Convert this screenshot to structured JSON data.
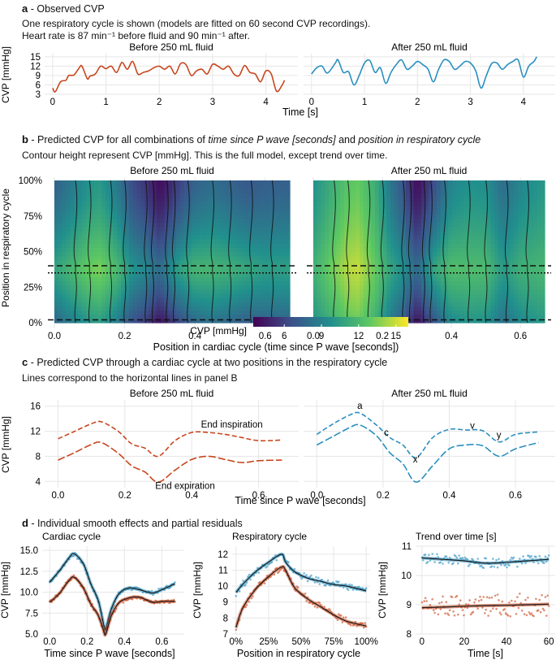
{
  "colors": {
    "before": "#c8461d",
    "after": "#2a8fc0",
    "dark": "#1b1b1b",
    "grid": "#e6e6e6"
  },
  "panel_a": {
    "letter": "a",
    "title": " - Observed CVP",
    "line1": "One respiratory cycle is shown (models are fitted on 60 second CVP recordings).",
    "line2": "Heart rate is 87 min⁻¹ before fluid and 90 min⁻¹ after."
  },
  "panel_b": {
    "letter": "b",
    "title_pre": " - Predicted CVP for all combinations of ",
    "title_it1": "time since P wave [seconds]",
    "title_mid": " and ",
    "title_it2": "position in respiratory cycle",
    "subtitle": "Contour height represent CVP [mmHg]. This is the full model, except trend over time.",
    "colorbar_label": "CVP [mmHg]",
    "colorbar_ticks": [
      "6",
      "9",
      "12",
      "15"
    ]
  },
  "panel_c": {
    "letter": "c",
    "title": " - Predicted CVP through a cardiac cycle at two positions in the respiratory cycle",
    "subtitle": "Lines correspond to the horizontal lines in panel B",
    "label_insp": "End inspiration",
    "label_exp": "End expiration",
    "wave_labels": [
      "a",
      "c",
      "x'",
      "v",
      "y"
    ]
  },
  "panel_d": {
    "letter": "d",
    "title": " - Individual smooth effects and partial residuals"
  },
  "chart_data": [
    {
      "id": "a",
      "type": "line",
      "facets": [
        "Before 250 mL fluid",
        "After 250 mL fluid"
      ],
      "xlabel": "Time [s]",
      "ylabel": "CVP [mmHg]",
      "ylim": [
        3,
        16
      ],
      "yticks": [
        "15",
        "12",
        "9",
        "6",
        "3"
      ],
      "xticks": [
        "0",
        "1",
        "2",
        "3",
        "4"
      ],
      "series": [
        {
          "name": "Before 250 mL fluid",
          "x": [
            0,
            0.05,
            0.15,
            0.25,
            0.3,
            0.4,
            0.5,
            0.55,
            0.65,
            0.7,
            0.8,
            0.9,
            1.0,
            1.1,
            1.2,
            1.3,
            1.4,
            1.5,
            1.6,
            1.7,
            1.8,
            1.9,
            2.0,
            2.1,
            2.2,
            2.3,
            2.4,
            2.5,
            2.6,
            2.7,
            2.8,
            2.9,
            3.0,
            3.1,
            3.2,
            3.3,
            3.4,
            3.5,
            3.6,
            3.7,
            3.8,
            3.9,
            4.0,
            4.1,
            4.2,
            4.3,
            4.35
          ],
          "y": [
            5,
            3.8,
            7,
            7.5,
            9,
            9.2,
            11.5,
            12,
            8,
            8.8,
            9.5,
            12,
            11.2,
            12,
            10,
            13.2,
            11,
            13.5,
            9.5,
            10,
            10.5,
            11.5,
            12,
            11,
            12,
            9.5,
            12.8,
            12.5,
            9,
            10.5,
            11,
            9.5,
            12.6,
            12,
            11,
            12,
            9.5,
            9,
            12.2,
            10,
            9.5,
            7,
            10.5,
            9.5,
            4,
            5.8,
            7.5
          ]
        },
        {
          "name": "After 250 mL fluid",
          "x": [
            0,
            0.1,
            0.2,
            0.3,
            0.45,
            0.5,
            0.6,
            0.7,
            0.8,
            0.9,
            1.0,
            1.1,
            1.2,
            1.3,
            1.4,
            1.5,
            1.6,
            1.7,
            1.8,
            1.9,
            2.0,
            2.1,
            2.2,
            2.3,
            2.4,
            2.5,
            2.6,
            2.7,
            2.8,
            2.9,
            3.0,
            3.1,
            3.2,
            3.3,
            3.4,
            3.5,
            3.6,
            3.7,
            3.8,
            3.9,
            4.0,
            4.1,
            4.2,
            4.25
          ],
          "y": [
            9.5,
            11.5,
            12,
            9.8,
            13,
            14,
            10,
            10.2,
            6,
            9,
            13,
            13.8,
            10,
            11.5,
            6.5,
            10,
            12.5,
            14,
            11,
            12,
            13.5,
            12.5,
            11,
            7,
            11,
            14,
            13.5,
            11,
            12,
            13.5,
            13,
            10.5,
            5,
            9,
            12.8,
            13,
            11,
            12.5,
            13.5,
            14,
            8.5,
            12,
            13.5,
            15
          ]
        }
      ]
    },
    {
      "id": "b",
      "type": "heatmap",
      "facets": [
        "Before 250 mL fluid",
        "After 250 mL fluid"
      ],
      "xlabel": "Position in cardiac cycle (time since P wave [seconds])",
      "ylabel": "Position in respiratory cycle",
      "x_range": [
        0,
        0.67
      ],
      "y_range": [
        0,
        1
      ],
      "xticks": [
        "0.0",
        "0.2",
        "0.4",
        "0.6"
      ],
      "yticks": [
        "100%",
        "75%",
        "50%",
        "25%",
        "0%"
      ],
      "horizontal_lines": [
        {
          "y": 0.35,
          "style": "dotted"
        },
        {
          "y": 0.4,
          "style": "dashed"
        },
        {
          "y": 0.02,
          "style": "dashed"
        }
      ],
      "color_scale": {
        "min": 3.5,
        "max": 16,
        "colors": [
          "#440154",
          "#3b528b",
          "#21908d",
          "#5dc863",
          "#fde725"
        ]
      }
    },
    {
      "id": "c",
      "type": "line",
      "facets": [
        "Before 250 mL fluid",
        "After 250 mL fluid"
      ],
      "xlabel": "Time since P wave [seconds]",
      "ylabel": "CVP [mmHg]",
      "ylim": [
        3,
        17
      ],
      "yticks": [
        "16",
        "12",
        "8",
        "4"
      ],
      "xticks": [
        "0.0",
        "0.2",
        "0.4",
        "0.6"
      ],
      "x": [
        0,
        0.05,
        0.1,
        0.13,
        0.18,
        0.22,
        0.26,
        0.3,
        0.35,
        0.4,
        0.45,
        0.5,
        0.55,
        0.6,
        0.67
      ],
      "series": [
        {
          "name": "Before End inspiration",
          "values": [
            10.8,
            12,
            13.2,
            13.5,
            12,
            10,
            9.3,
            8,
            10.5,
            11.8,
            11.8,
            11.5,
            11,
            10.5,
            10.6
          ]
        },
        {
          "name": "Before End expiration",
          "values": [
            7.4,
            8.6,
            9.9,
            10.2,
            8.5,
            6.5,
            5.5,
            3.9,
            5.8,
            7.5,
            8,
            7.5,
            7,
            7.3,
            7.4
          ]
        },
        {
          "name": "After End inspiration",
          "values": [
            11.5,
            13.2,
            14.6,
            14.9,
            13,
            11,
            9.8,
            7.8,
            11,
            12.3,
            12.2,
            12.1,
            10.3,
            11.5,
            11.9
          ]
        },
        {
          "name": "After End expiration",
          "values": [
            9.8,
            11.2,
            12.6,
            13,
            11.3,
            8.6,
            6.8,
            3.9,
            6.5,
            9.2,
            9.8,
            9.7,
            8,
            9.2,
            10.2
          ]
        }
      ]
    },
    {
      "id": "d1",
      "type": "line",
      "title": "Cardiac cycle",
      "xlabel": "Time since P wave [seconds]",
      "ylabel": "CVP [mmHg]",
      "ylim": [
        5,
        15.5
      ],
      "yticks": [
        "15.0",
        "12.5",
        "10.0",
        "7.5",
        "5.0"
      ],
      "xticks": [
        "0.0",
        "0.2",
        "0.4",
        "0.6"
      ],
      "x": [
        0,
        0.05,
        0.1,
        0.13,
        0.18,
        0.22,
        0.26,
        0.29,
        0.3,
        0.33,
        0.37,
        0.42,
        0.48,
        0.55,
        0.6,
        0.67
      ],
      "series": [
        {
          "name": "After 250 mL fluid",
          "values": [
            11.2,
            12.5,
            14,
            14.6,
            13.4,
            11,
            9,
            6,
            5.6,
            8,
            9.8,
            10.5,
            10.3,
            9.9,
            10.3,
            11
          ]
        },
        {
          "name": "Before 250 mL fluid",
          "values": [
            8.8,
            9.8,
            11.3,
            11.8,
            10.5,
            8.6,
            7.2,
            5.3,
            5.0,
            7.2,
            8.7,
            9.3,
            9.4,
            8.8,
            8.9,
            8.9
          ]
        }
      ]
    },
    {
      "id": "d2",
      "type": "line",
      "title": "Respiratory cycle",
      "xlabel": "Position in respiratory cycle",
      "ylabel": "CVP [mmHg]",
      "ylim": [
        7,
        12.5
      ],
      "yticks": [
        "12",
        "11",
        "10",
        "9",
        "8",
        "7"
      ],
      "xticks": [
        "0%",
        "25%",
        "50%",
        "75%",
        "100%"
      ],
      "x": [
        0,
        0.05,
        0.15,
        0.25,
        0.35,
        0.38,
        0.45,
        0.55,
        0.65,
        0.75,
        0.85,
        1.0
      ],
      "series": [
        {
          "name": "After 250 mL fluid",
          "values": [
            9.6,
            10.1,
            10.9,
            11.5,
            12,
            11.5,
            10.9,
            10.5,
            10.3,
            10.1,
            10,
            9.7
          ]
        },
        {
          "name": "Before 250 mL fluid",
          "values": [
            7.4,
            8.6,
            9.8,
            10.6,
            11.2,
            11,
            9.9,
            9.2,
            8.7,
            8.2,
            7.8,
            7.5
          ]
        }
      ]
    },
    {
      "id": "d3",
      "type": "scatter",
      "title": "Trend over time [s]",
      "xlabel": "Time [s]",
      "ylabel": "CVP [mmHg]",
      "ylim": [
        8,
        11
      ],
      "yticks": [
        "11",
        "10",
        "9",
        "8"
      ],
      "xticks": [
        "0",
        "20",
        "40",
        "60"
      ],
      "x": [
        0,
        10,
        20,
        30,
        40,
        50,
        60
      ],
      "series": [
        {
          "name": "After 250 mL fluid",
          "values": [
            10.6,
            10.55,
            10.5,
            10.42,
            10.45,
            10.5,
            10.55
          ]
        },
        {
          "name": "Before 250 mL fluid",
          "values": [
            8.9,
            8.92,
            8.95,
            8.97,
            8.98,
            9.0,
            9.02
          ]
        }
      ]
    }
  ]
}
